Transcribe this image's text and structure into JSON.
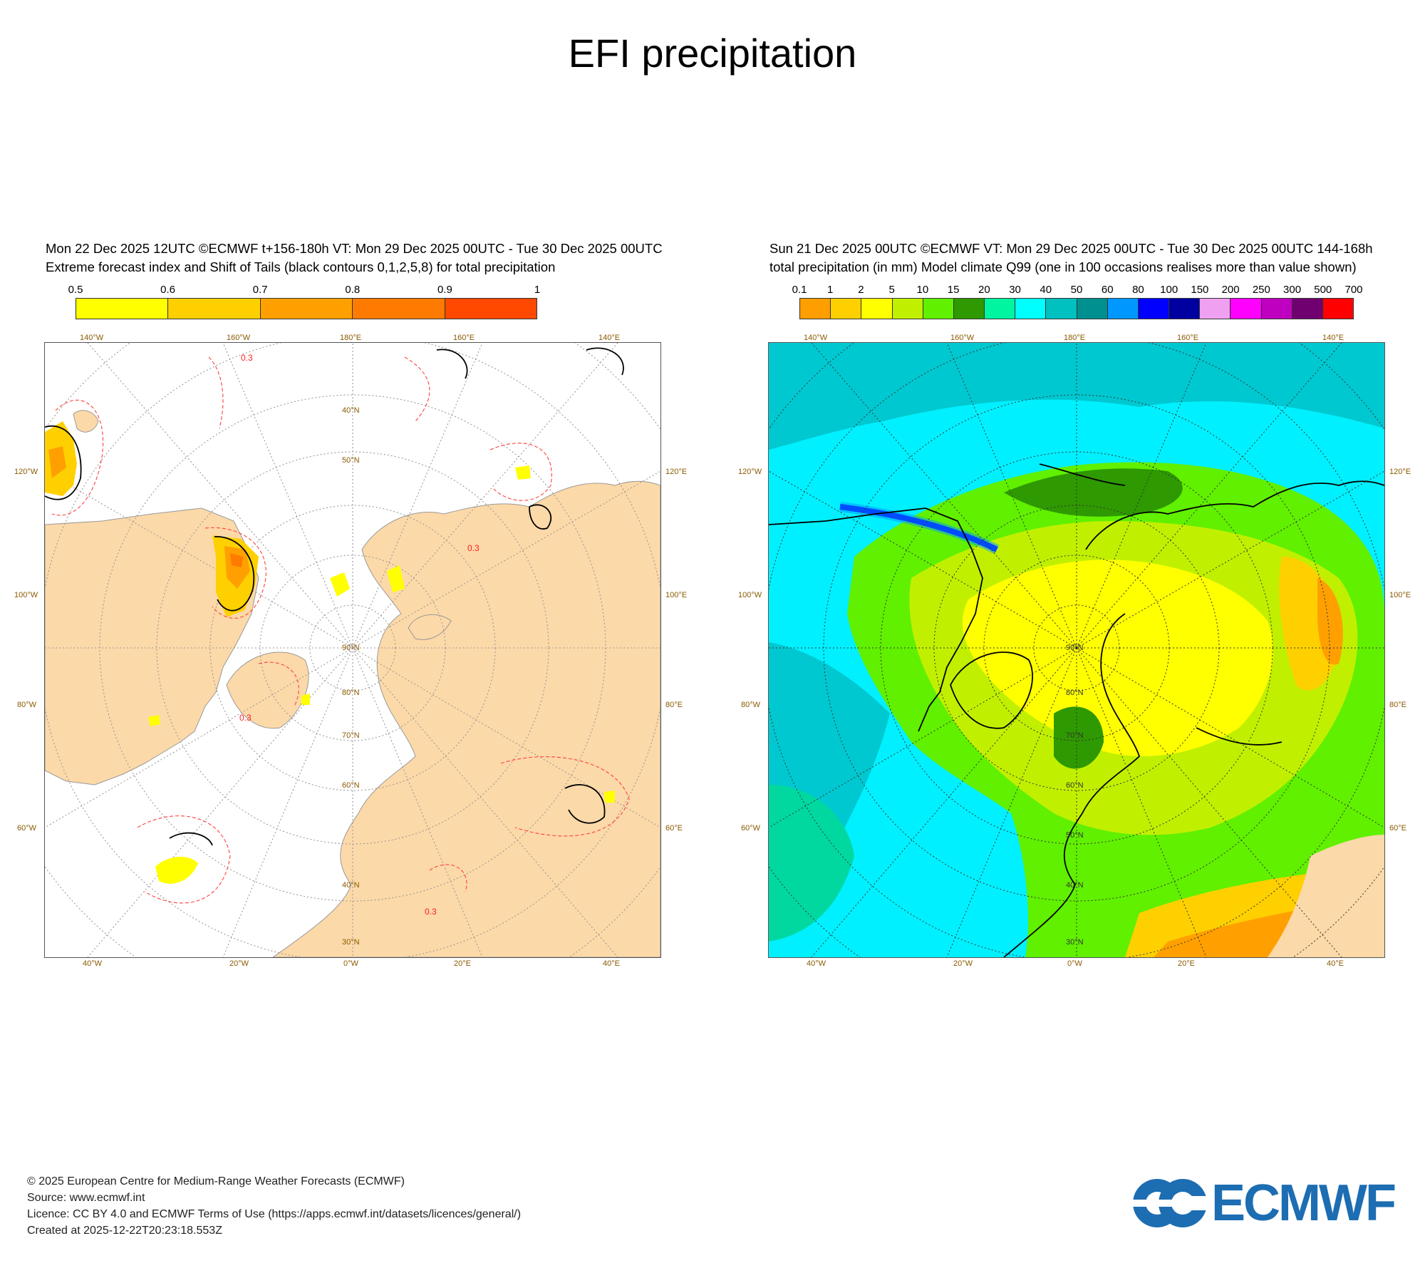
{
  "title": "EFI precipitation",
  "left_panel": {
    "header_line1": "Mon 22 Dec 2025 12UTC ©ECMWF t+156-180h  VT: Mon 29 Dec 2025 00UTC - Tue 30 Dec 2025 00UTC",
    "header_line2": "Extreme forecast index and Shift of Tails (black contours 0,1,2,5,8) for total precipitation",
    "colorbar_ticks": [
      "0.5",
      "0.6",
      "0.7",
      "0.8",
      "0.9",
      "1"
    ],
    "colorbar_colors": [
      "#ffff00",
      "#ffd000",
      "#ffa000",
      "#ff7a00",
      "#ff4800"
    ],
    "contour_label": "0.3",
    "top_lon_labels": [
      "140°W",
      "160°W",
      "180°E",
      "160°E",
      "140°E"
    ],
    "bottom_lon_labels": [
      "40°W",
      "20°W",
      "0°W",
      "20°E",
      "40°E"
    ],
    "left_lon_labels": [
      "120°W",
      "100°W",
      "80°W",
      "60°W"
    ],
    "right_lon_labels": [
      "120°E",
      "100°E",
      "80°E",
      "60°E"
    ],
    "lat_labels": [
      "30°N",
      "40°N",
      "50°N",
      "60°N",
      "70°N",
      "80°N",
      "90°N"
    ]
  },
  "right_panel": {
    "header_line1": "Sun 21 Dec 2025 00UTC ©ECMWF VT: Mon 29 Dec 2025 00UTC - Tue 30 Dec 2025 00UTC   144-168h",
    "header_line2": "total precipitation (in mm)  Model climate Q99 (one in 100 occasions realises more than value shown)",
    "colorbar_ticks": [
      "0.1",
      "1",
      "2",
      "5",
      "10",
      "15",
      "20",
      "30",
      "40",
      "50",
      "60",
      "80",
      "100",
      "150",
      "200",
      "250",
      "300",
      "500",
      "700"
    ],
    "colorbar_colors": [
      "#ff9e00",
      "#ffd000",
      "#ffff00",
      "#c0f000",
      "#60f000",
      "#2e9900",
      "#00f5a0",
      "#00ffff",
      "#00c0c0",
      "#009090",
      "#0098ff",
      "#0000ff",
      "#0000a0",
      "#f0a0f0",
      "#ff00ff",
      "#c000c0",
      "#700070",
      "#ff0000"
    ],
    "top_lon_labels": [
      "140°W",
      "160°W",
      "180°E",
      "160°E",
      "140°E"
    ],
    "bottom_lon_labels": [
      "40°W",
      "20°W",
      "0°W",
      "20°E",
      "40°E"
    ],
    "left_lon_labels": [
      "120°W",
      "100°W",
      "80°W",
      "60°W"
    ],
    "right_lon_labels": [
      "120°E",
      "100°E",
      "80°E",
      "60°E"
    ],
    "lat_labels": [
      "30°N",
      "40°N",
      "50°N",
      "60°N",
      "70°N",
      "80°N",
      "90°N"
    ]
  },
  "footer": {
    "line1": "© 2025 European Centre for Medium-Range Weather Forecasts (ECMWF)",
    "line2": "Source: www.ecmwf.int",
    "line3": "Licence: CC BY 4.0 and ECMWF Terms of Use (https://apps.ecmwf.int/datasets/licences/general/)",
    "line4": "Created at 2025-12-22T20:23:18.553Z"
  },
  "logo": {
    "text": "ECMWF",
    "color": "#1d6db2"
  }
}
